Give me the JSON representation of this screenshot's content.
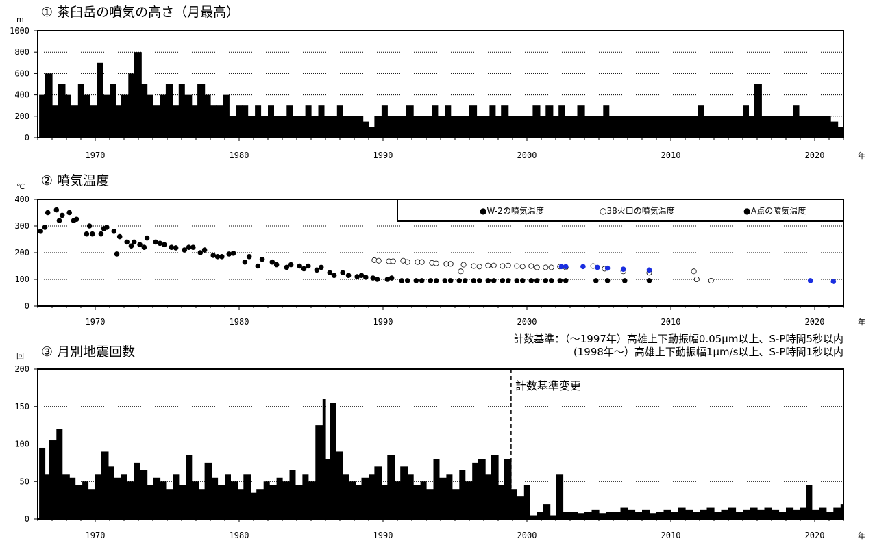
{
  "x_unit": "年",
  "colors": {
    "black": "#000000",
    "blue": "#1a2ee0",
    "grid": "#000000",
    "hollow": "#ffffff"
  },
  "chart_data": [
    {
      "type": "bar",
      "title": "① 茶臼岳の噴気の高さ（月最高）",
      "ylabel": "m",
      "xlabel": "年",
      "xlim": [
        1966,
        2022
      ],
      "ylim": [
        0,
        1000
      ],
      "yticks": [
        0,
        200,
        400,
        600,
        800,
        1000
      ],
      "xticks": [
        1970,
        1980,
        1990,
        2000,
        2010,
        2020
      ],
      "grid": true,
      "series": [
        {
          "x": [
            1966.1,
            1966.5,
            1967.0,
            1967.4,
            1967.9,
            1968.3,
            1968.8,
            1969.2,
            1969.6,
            1970.1,
            1970.5,
            1971.0,
            1971.4,
            1971.8,
            1972.3,
            1972.7,
            1973.2,
            1973.6,
            1974.0,
            1974.5,
            1974.9,
            1975.4,
            1975.8,
            1976.2,
            1976.7,
            1977.1,
            1977.6,
            1978.0,
            1978.4,
            1978.9,
            1979.3,
            1979.8,
            1980.2,
            1980.6,
            1981.1,
            1981.5,
            1982.0,
            1982.4,
            1982.8,
            1983.3,
            1983.7,
            1984.2,
            1984.6,
            1985.0,
            1985.5,
            1985.9,
            1986.4,
            1986.8,
            1987.2,
            1987.7,
            1988.1,
            1988.6,
            1989.0,
            1989.4,
            1989.9,
            1990.3,
            1990.8,
            1991.2,
            1991.6,
            1992.1,
            1992.5,
            1993.0,
            1993.4,
            1993.8,
            1994.3,
            1994.7,
            1995.2,
            1995.6,
            1996.0,
            1996.5,
            1996.9,
            1997.4,
            1997.8,
            1998.2,
            1998.7,
            1999.1,
            1999.6,
            2000.0,
            2000.4,
            2000.9,
            2001.3,
            2001.8,
            2002.2,
            2002.6,
            2003.1,
            2003.5,
            2004.0,
            2004.4,
            2004.8,
            2005.3,
            2005.7,
            2006.2,
            2006.6,
            2007.0,
            2007.5,
            2007.9,
            2008.4,
            2008.8,
            2009.2,
            2009.7,
            2010.1,
            2010.6,
            2011.0,
            2011.4,
            2011.9,
            2012.3,
            2012.8,
            2013.2,
            2013.6,
            2014.1,
            2014.5,
            2015.0,
            2015.4,
            2015.8,
            2016.3,
            2016.7,
            2017.2,
            2017.6,
            2018.0,
            2018.5,
            2018.9,
            2019.4,
            2019.8,
            2020.2,
            2020.7,
            2021.1,
            2021.6,
            2021.9
          ],
          "values": [
            400,
            600,
            300,
            500,
            400,
            300,
            500,
            400,
            300,
            700,
            400,
            500,
            300,
            400,
            600,
            800,
            500,
            400,
            300,
            400,
            500,
            300,
            500,
            400,
            300,
            500,
            400,
            300,
            300,
            400,
            200,
            300,
            300,
            200,
            300,
            200,
            300,
            200,
            200,
            300,
            200,
            200,
            300,
            200,
            300,
            200,
            200,
            300,
            200,
            200,
            200,
            150,
            100,
            200,
            300,
            200,
            200,
            200,
            300,
            200,
            200,
            200,
            300,
            200,
            300,
            200,
            200,
            200,
            300,
            200,
            200,
            300,
            200,
            300,
            200,
            200,
            200,
            200,
            300,
            200,
            300,
            200,
            300,
            200,
            200,
            300,
            200,
            200,
            200,
            300,
            200,
            200,
            200,
            200,
            200,
            200,
            200,
            200,
            200,
            200,
            200,
            200,
            200,
            200,
            300,
            200,
            200,
            200,
            200,
            200,
            200,
            300,
            200,
            500,
            200,
            200,
            200,
            200,
            200,
            300,
            200,
            200,
            200,
            200,
            200,
            150,
            100,
            100
          ]
        }
      ]
    },
    {
      "type": "scatter",
      "title": "② 噴気温度",
      "ylabel": "℃",
      "xlabel": "年",
      "xlim": [
        1966,
        2022
      ],
      "ylim": [
        0,
        400
      ],
      "yticks": [
        0,
        100,
        200,
        300,
        400
      ],
      "xticks": [
        1970,
        1980,
        1990,
        2000,
        2010,
        2020
      ],
      "grid": true,
      "legend_position": "top-right",
      "series": [
        {
          "name": "●W-2の噴気温度",
          "style": "filled-black",
          "x": [
            1966.2,
            1966.5,
            1966.7,
            1967.3,
            1967.5,
            1967.7,
            1968.2,
            1968.5,
            1968.7,
            1969.4,
            1969.6,
            1969.8,
            1970.4,
            1970.6,
            1970.8,
            1971.3,
            1971.5,
            1971.7,
            1972.2,
            1972.5,
            1972.7,
            1973.1,
            1973.4,
            1973.6,
            1974.2,
            1974.5,
            1974.8,
            1975.3,
            1975.6,
            1976.2,
            1976.5,
            1976.8,
            1977.3,
            1977.6,
            1978.2,
            1978.5,
            1978.8,
            1979.3,
            1979.6,
            1980.4,
            1980.7,
            1981.3,
            1981.6,
            1982.3,
            1982.6,
            1983.3,
            1983.6,
            1984.2,
            1984.5,
            1984.8,
            1985.4,
            1985.7,
            1986.3,
            1986.6,
            1987.2,
            1987.6,
            1988.2,
            1988.5,
            1988.8,
            1989.3,
            1989.6,
            1990.3,
            1990.6,
            1991.3,
            1991.7,
            1992.3,
            1992.7,
            1993.3,
            1993.7,
            1994.3,
            1994.7,
            1995.3,
            1995.7,
            1996.3,
            1996.7,
            1997.3,
            1997.7,
            1998.3,
            1998.7,
            1999.3,
            1999.7,
            2000.3,
            2000.7,
            2001.3,
            2001.7,
            2002.3,
            2002.7,
            2004.8,
            2005.6,
            2006.8,
            2008.5
          ],
          "y": [
            280,
            295,
            350,
            360,
            320,
            340,
            350,
            320,
            325,
            270,
            300,
            270,
            270,
            290,
            295,
            280,
            195,
            260,
            240,
            225,
            240,
            230,
            220,
            255,
            240,
            235,
            230,
            220,
            218,
            210,
            220,
            220,
            200,
            210,
            190,
            185,
            185,
            195,
            198,
            165,
            185,
            150,
            175,
            165,
            155,
            145,
            155,
            150,
            140,
            150,
            135,
            145,
            125,
            115,
            125,
            115,
            110,
            115,
            108,
            105,
            100,
            100,
            105,
            95,
            95,
            95,
            95,
            95,
            95,
            95,
            95,
            95,
            95,
            95,
            95,
            95,
            95,
            95,
            95,
            95,
            95,
            95,
            95,
            95,
            95,
            95,
            95,
            95,
            95,
            95,
            95
          ]
        },
        {
          "name": "○38火口の噴気温度",
          "style": "hollow",
          "x": [
            1989.4,
            1989.7,
            1990.4,
            1990.7,
            1991.4,
            1991.7,
            1992.4,
            1992.7,
            1993.4,
            1993.7,
            1994.4,
            1994.7,
            1995.4,
            1995.6,
            1996.3,
            1996.7,
            1997.3,
            1997.7,
            1998.3,
            1998.7,
            1999.3,
            1999.7,
            2000.3,
            2000.7,
            2001.3,
            2001.7,
            2002.3,
            2002.7,
            2004.6,
            2005.4,
            2006.7,
            2008.5,
            2011.6,
            2011.8,
            2012.8
          ],
          "y": [
            172,
            170,
            168,
            168,
            170,
            165,
            165,
            165,
            162,
            160,
            158,
            158,
            130,
            155,
            150,
            148,
            152,
            152,
            150,
            152,
            150,
            148,
            150,
            145,
            145,
            145,
            148,
            145,
            150,
            140,
            130,
            125,
            130,
            100,
            95
          ]
        },
        {
          "name": "●A点の噴気温度",
          "style": "filled-blue",
          "x": [
            2002.4,
            2002.7,
            2003.9,
            2004.9,
            2005.6,
            2006.7,
            2008.5,
            2019.7,
            2021.3
          ],
          "y": [
            148,
            148,
            148,
            145,
            142,
            138,
            135,
            95,
            92
          ]
        }
      ]
    },
    {
      "type": "bar",
      "title": "③ 月別地震回数",
      "ylabel": "回",
      "xlabel": "年",
      "xlim": [
        1966,
        2022
      ],
      "ylim": [
        0,
        200
      ],
      "yticks": [
        0,
        50,
        100,
        150,
        200
      ],
      "xticks": [
        1970,
        1980,
        1990,
        2000,
        2010,
        2020
      ],
      "grid": true,
      "series": [
        {
          "x": [
            1966.1,
            1966.5,
            1966.8,
            1967.3,
            1967.7,
            1968.2,
            1968.6,
            1969.1,
            1969.5,
            1970.0,
            1970.4,
            1970.9,
            1971.3,
            1971.8,
            1972.2,
            1972.7,
            1973.1,
            1973.6,
            1974.0,
            1974.5,
            1974.9,
            1975.4,
            1975.8,
            1976.3,
            1976.7,
            1977.2,
            1977.6,
            1978.1,
            1978.5,
            1979.0,
            1979.4,
            1979.9,
            1980.3,
            1980.8,
            1981.2,
            1981.7,
            1982.1,
            1982.6,
            1983.0,
            1983.5,
            1983.9,
            1984.4,
            1984.8,
            1985.3,
            1985.8,
            1986.0,
            1986.3,
            1986.7,
            1987.2,
            1987.6,
            1988.1,
            1988.5,
            1989.0,
            1989.4,
            1989.9,
            1990.3,
            1990.8,
            1991.2,
            1991.7,
            1992.1,
            1992.6,
            1993.0,
            1993.5,
            1993.9,
            1994.4,
            1994.8,
            1995.3,
            1995.7,
            1996.2,
            1996.6,
            1997.1,
            1997.5,
            1998.0,
            1998.4,
            1998.9,
            1999.3,
            1999.8,
            2000.2,
            2000.7,
            2001.1,
            2001.6,
            2002.0,
            2002.5,
            2003.0,
            2003.5,
            2004.0,
            2004.5,
            2005.0,
            2005.5,
            2006.0,
            2006.5,
            2007.0,
            2007.5,
            2008.0,
            2008.5,
            2009.0,
            2009.5,
            2010.0,
            2010.5,
            2011.0,
            2011.5,
            2012.0,
            2012.5,
            2013.0,
            2013.5,
            2014.0,
            2014.5,
            2015.0,
            2015.5,
            2016.0,
            2016.5,
            2017.0,
            2017.5,
            2018.0,
            2018.5,
            2019.0,
            2019.4,
            2019.8,
            2020.3,
            2020.8,
            2021.3,
            2021.8
          ],
          "values": [
            95,
            60,
            105,
            120,
            60,
            55,
            45,
            50,
            40,
            60,
            90,
            70,
            55,
            60,
            50,
            75,
            65,
            45,
            55,
            50,
            40,
            60,
            45,
            85,
            50,
            40,
            75,
            55,
            45,
            60,
            50,
            40,
            60,
            35,
            40,
            50,
            45,
            55,
            50,
            65,
            45,
            60,
            50,
            125,
            160,
            80,
            155,
            90,
            60,
            50,
            45,
            55,
            60,
            70,
            45,
            85,
            50,
            70,
            60,
            45,
            50,
            40,
            80,
            55,
            60,
            40,
            65,
            50,
            75,
            80,
            60,
            85,
            45,
            80,
            40,
            30,
            45,
            5,
            10,
            20,
            5,
            60,
            10,
            10,
            8,
            10,
            12,
            8,
            10,
            10,
            15,
            12,
            10,
            12,
            8,
            10,
            12,
            10,
            15,
            12,
            10,
            12,
            15,
            10,
            12,
            15,
            10,
            12,
            15,
            12,
            15,
            12,
            10,
            15,
            12,
            15,
            45,
            12,
            15,
            10,
            15,
            20
          ]
        }
      ]
    }
  ],
  "annotations": {
    "count_criteria_line1": "計数基準：（～1997年）高雄上下動振幅0.05μm以上、S-P時間5秒以内",
    "count_criteria_line2": "(1998年～）高雄上下動振幅1μm/s以上、S-P時間1秒以内",
    "criteria_change_label": "計数基準変更",
    "criteria_change_x": 1998.9
  }
}
